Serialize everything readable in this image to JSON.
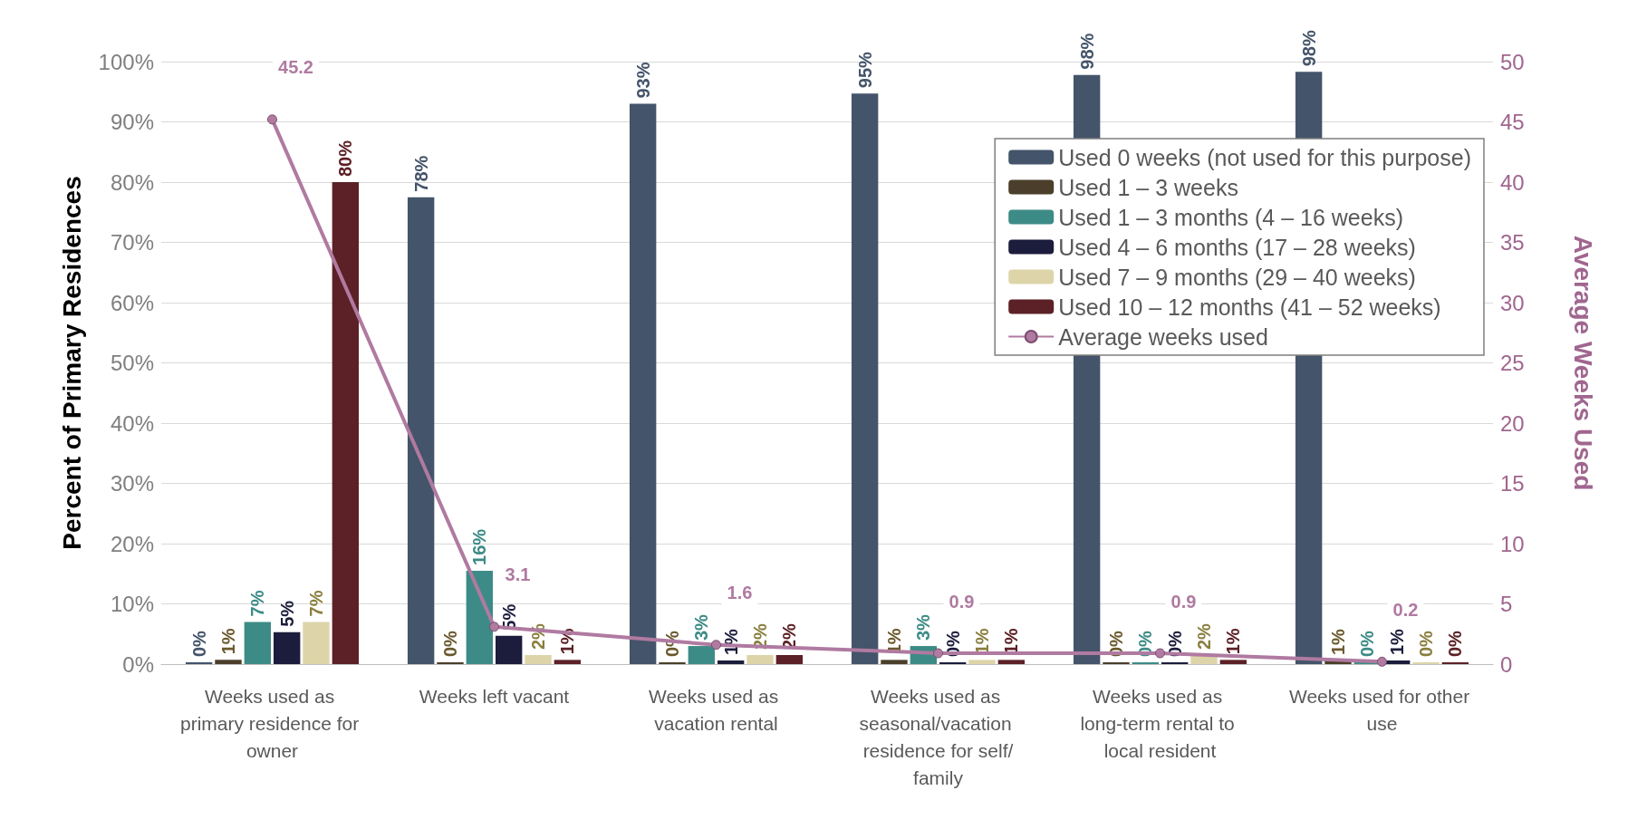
{
  "chart_data": {
    "type": "bar",
    "categories": [
      "Weeks used as primary residence for owner",
      "Weeks left vacant",
      "Weeks used as vacation rental",
      "Weeks used as seasonal/vacation residence for self/family",
      "Weeks used as long-term rental to local resident",
      "Weeks used for other use"
    ],
    "ylabel": "Percent of Primary Residences",
    "y2label": "Average Weeks Used",
    "ylim": [
      0,
      100
    ],
    "yticks": [
      {
        "value": 0,
        "label": "0%"
      },
      {
        "value": 10,
        "label": "10%"
      },
      {
        "value": 20,
        "label": "20%"
      },
      {
        "value": 30,
        "label": "30%"
      },
      {
        "value": 40,
        "label": "40%"
      },
      {
        "value": 50,
        "label": "50%"
      },
      {
        "value": 60,
        "label": "60%"
      },
      {
        "value": 70,
        "label": "70%"
      },
      {
        "value": 80,
        "label": "80%"
      },
      {
        "value": 90,
        "label": "90%"
      },
      {
        "value": 100,
        "label": "100%"
      }
    ],
    "y2lim": [
      0,
      50
    ],
    "y2ticks": [
      0,
      5,
      10,
      15,
      20,
      25,
      30,
      35,
      40,
      45,
      50
    ],
    "grid": "y",
    "legend": "top right",
    "series": [
      {
        "name": "Used 0 weeks (not used for this purpose)",
        "color": "#44546a",
        "values": [
          0,
          77.5,
          93,
          94.7,
          97.8,
          98.3
        ],
        "value_labels": [
          "0%",
          "78%",
          "93%",
          "95%",
          "98%",
          "98%"
        ]
      },
      {
        "name": "Used 1 – 3 weeks",
        "color": "#4b3f2b",
        "values": [
          0.7,
          0,
          0,
          0.7,
          0,
          0.6
        ],
        "value_labels": [
          "1%",
          "0%",
          "0%",
          "1%",
          "0%",
          "1%"
        ]
      },
      {
        "name": "Used 1 – 3 months (4 – 16 weeks)",
        "color": "#3d8b86",
        "values": [
          7,
          15.5,
          3,
          3,
          0,
          0
        ],
        "value_labels": [
          "7%",
          "16%",
          "3%",
          "3%",
          "0%",
          "0%"
        ]
      },
      {
        "name": "Used 4 – 6 months (17 – 28 weeks)",
        "color": "#1c1d3c",
        "values": [
          5.3,
          4.7,
          0.6,
          0,
          0,
          0.6
        ],
        "value_labels": [
          "5%",
          "5%",
          "1%",
          "0%",
          "0%",
          "1%"
        ]
      },
      {
        "name": "Used 7 – 9 months (29 – 40 weeks)",
        "color": "#ddd5a9",
        "values": [
          7,
          1.5,
          1.5,
          0.7,
          1.5,
          0
        ],
        "value_labels": [
          "7%",
          "2%",
          "2%",
          "1%",
          "2%",
          "0%"
        ]
      },
      {
        "name": "Used 10 – 12 months (41 – 52 weeks)",
        "color": "#5c2126",
        "values": [
          80,
          0.7,
          1.5,
          0.7,
          0.7,
          0
        ],
        "value_labels": [
          "80%",
          "1%",
          "2%",
          "1%",
          "1%",
          "0%"
        ]
      },
      {
        "name": "Average weeks used",
        "type": "line",
        "axis": "y2",
        "color": "#b07aa1",
        "marker": "circle",
        "values": [
          45.2,
          3.1,
          1.6,
          0.9,
          0.9,
          0.2
        ],
        "value_labels": [
          "45.2",
          "3.1",
          "1.6",
          "0.9",
          "0.9",
          "0.2"
        ]
      }
    ]
  }
}
